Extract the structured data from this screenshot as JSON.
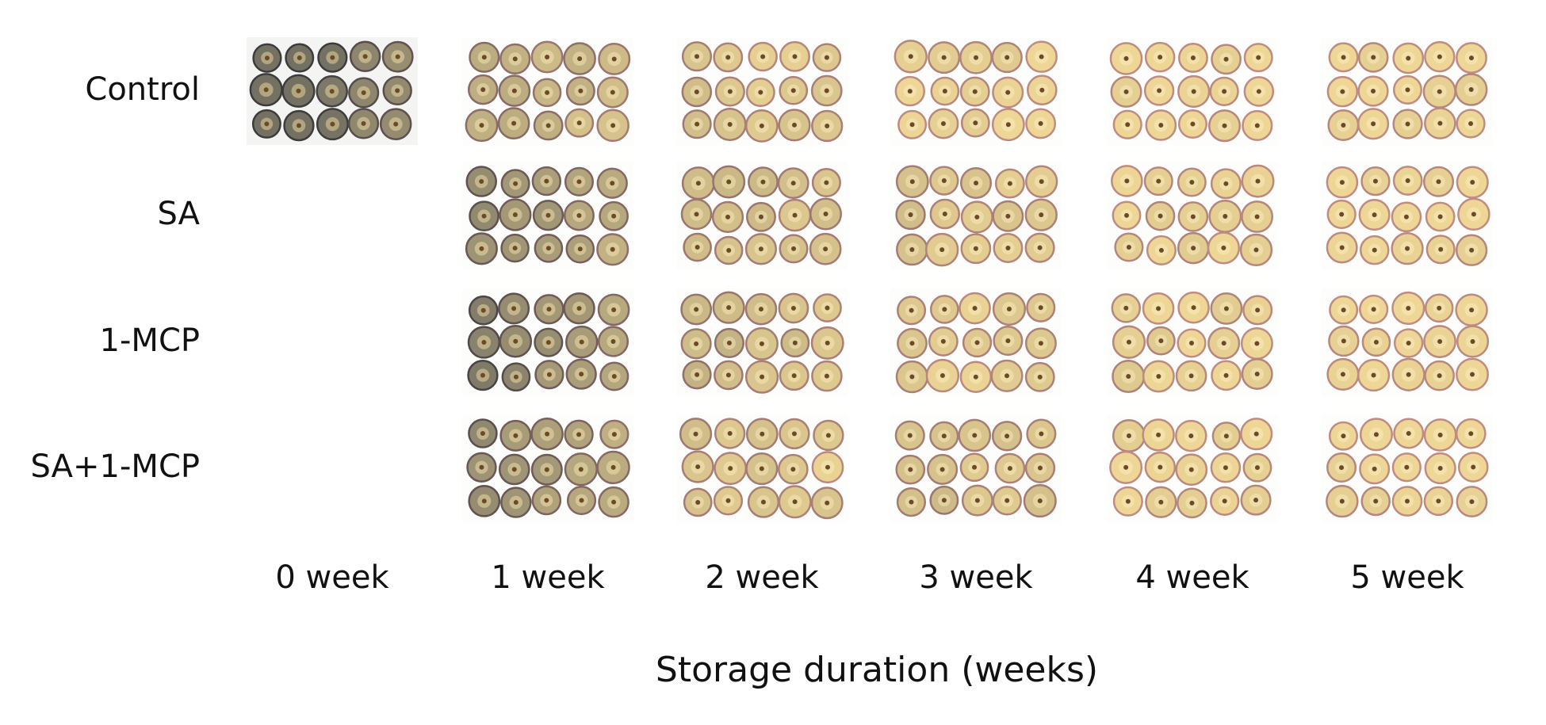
{
  "row_labels": [
    "Control",
    "SA",
    "1-MCP",
    "SA+1-MCP"
  ],
  "column_labels": [
    "0 week",
    "1 week",
    "2 week",
    "3 week",
    "4 week",
    "5 week"
  ],
  "axis_title": "Storage duration (weeks)"
}
